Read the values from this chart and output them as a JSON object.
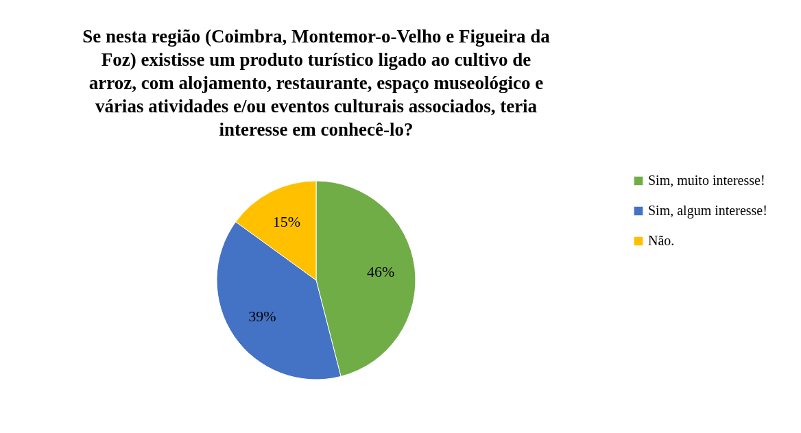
{
  "chart_data": {
    "type": "pie",
    "title": "Se nesta região (Coimbra, Montemor-o-Velho e Figueira da Foz) existisse um produto turístico ligado ao cultivo de arroz, com alojamento, restaurante, espaço museológico e várias atividades e/ou eventos culturais associados, teria interesse em conhecê-lo?",
    "categories": [
      "Sim, muito interesse!",
      "Sim, algum interesse!",
      "Não."
    ],
    "values": [
      46,
      39,
      15
    ],
    "colors": [
      "#70ad47",
      "#4472c4",
      "#ffc000"
    ],
    "value_labels": [
      "46%",
      "39%",
      "15%"
    ],
    "legend": "right"
  }
}
